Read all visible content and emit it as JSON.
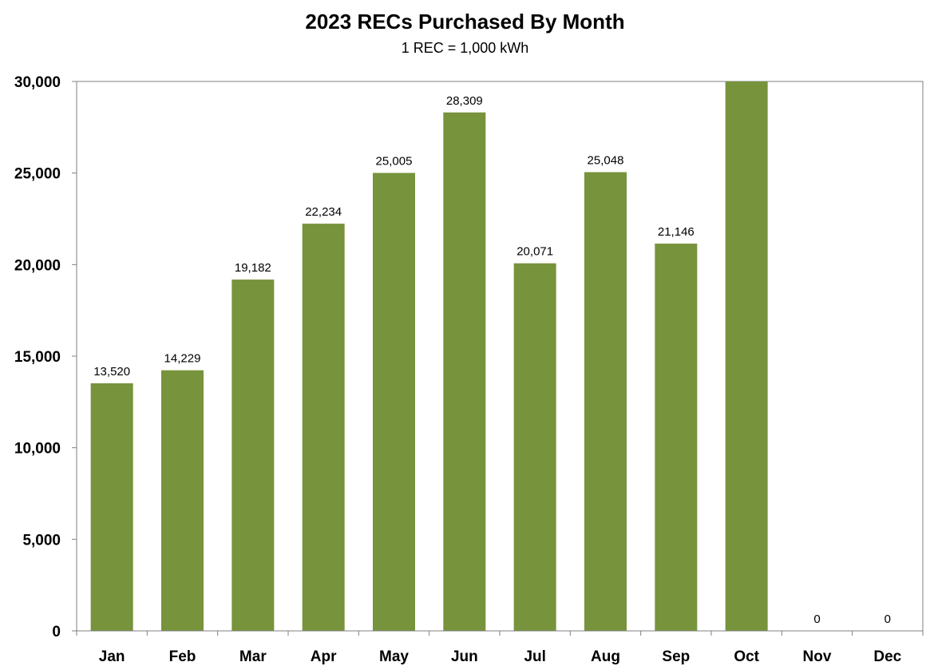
{
  "chart_data": {
    "type": "bar",
    "title": "2023 RECs Purchased By Month",
    "subtitle": "1 REC = 1,000 kWh",
    "xlabel": "",
    "ylabel": "",
    "categories": [
      "Jan",
      "Feb",
      "Mar",
      "Apr",
      "May",
      "Jun",
      "Jul",
      "Aug",
      "Sep",
      "Oct",
      "Nov",
      "Dec"
    ],
    "values": [
      13520,
      14229,
      19182,
      22234,
      25005,
      28309,
      20071,
      25048,
      21146,
      30000,
      0,
      0
    ],
    "data_labels": [
      "13,520",
      "14,229",
      "19,182",
      "22,234",
      "25,005",
      "28,309",
      "20,071",
      "25,048",
      "21,146",
      "",
      "0",
      "0"
    ],
    "ylim": [
      0,
      30000
    ],
    "yticks": [
      0,
      5000,
      10000,
      15000,
      20000,
      25000,
      30000
    ],
    "ytick_labels": [
      "0",
      "5,000",
      "10,000",
      "15,000",
      "20,000",
      "25,000",
      "30,000"
    ],
    "bar_color": "#77933C",
    "grid": false,
    "legend": "none"
  }
}
